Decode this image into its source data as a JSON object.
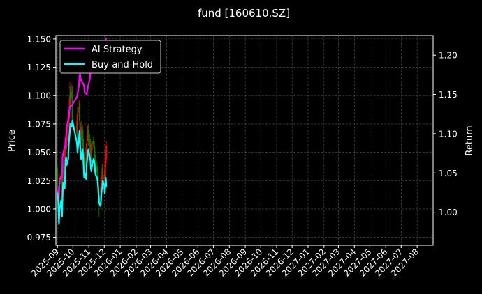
{
  "chart_data": {
    "type": "line",
    "title": "fund [160610.SZ]",
    "ylabel_left": "Price",
    "ylabel_right": "Return",
    "xlabel": "",
    "ylim_left": [
      0.968,
      1.153
    ],
    "ylim_right": [
      0.958,
      1.225
    ],
    "xlim": [
      "2025-08-29",
      "2027-09-01"
    ],
    "grid": true,
    "legend_position": "upper-left",
    "x_ticks": [
      "2025-09",
      "2025-10",
      "2025-11",
      "2025-12",
      "2026-01",
      "2026-02",
      "2026-03",
      "2026-04",
      "2026-05",
      "2026-06",
      "2026-07",
      "2026-08",
      "2026-09",
      "2026-10",
      "2026-11",
      "2026-12",
      "2027-01",
      "2027-02",
      "2027-03",
      "2027-04",
      "2027-05",
      "2027-06",
      "2027-07",
      "2027-08"
    ],
    "y_ticks_left": [
      "0.975",
      "1.000",
      "1.025",
      "1.050",
      "1.075",
      "1.100",
      "1.125",
      "1.150"
    ],
    "y_ticks_right": [
      "1.00",
      "1.05",
      "1.10",
      "1.15",
      "1.20"
    ],
    "colors": {
      "background": "#000000",
      "ai_strategy": "#ff00ff",
      "buy_and_hold": "#00ffff",
      "candle_up": "#ff0000",
      "candle_down": "#008000",
      "grid": "#555555"
    },
    "candlestick": {
      "axis": "left",
      "dates": [
        "2025-09-01",
        "2025-09-02",
        "2025-09-03",
        "2025-09-04",
        "2025-09-05",
        "2025-09-08",
        "2025-09-09",
        "2025-09-10",
        "2025-09-11",
        "2025-09-12",
        "2025-09-15",
        "2025-09-16",
        "2025-09-17",
        "2025-09-18",
        "2025-09-19",
        "2025-09-22",
        "2025-09-23",
        "2025-09-24",
        "2025-09-25",
        "2025-09-26",
        "2025-09-29",
        "2025-09-30",
        "2025-10-09",
        "2025-10-10",
        "2025-10-13",
        "2025-10-14",
        "2025-10-15",
        "2025-10-16",
        "2025-10-17",
        "2025-10-20",
        "2025-10-21",
        "2025-10-22",
        "2025-10-23",
        "2025-10-24",
        "2025-10-27",
        "2025-10-28",
        "2025-10-29",
        "2025-10-30",
        "2025-10-31",
        "2025-11-03",
        "2025-11-04",
        "2025-11-05",
        "2025-11-06",
        "2025-11-07",
        "2025-11-10",
        "2025-11-11",
        "2025-11-12",
        "2025-11-13",
        "2025-11-14",
        "2025-11-17",
        "2025-11-18",
        "2025-11-19",
        "2025-11-20",
        "2025-11-21",
        "2025-11-24",
        "2025-11-25",
        "2025-11-26",
        "2025-11-27",
        "2025-11-28",
        "2025-12-01",
        "2025-12-02",
        "2025-12-03",
        "2025-12-04",
        "2025-12-05"
      ],
      "open": [
        1.036,
        1.02,
        1.01,
        0.995,
        1.016,
        1.03,
        1.025,
        1.0,
        1.02,
        1.04,
        1.028,
        1.045,
        1.058,
        1.062,
        1.055,
        1.06,
        1.075,
        1.08,
        1.09,
        1.102,
        1.098,
        1.105,
        1.078,
        1.068,
        1.085,
        1.092,
        1.076,
        1.068,
        1.06,
        1.07,
        1.062,
        1.05,
        1.04,
        1.045,
        1.038,
        1.055,
        1.06,
        1.064,
        1.07,
        1.062,
        1.058,
        1.05,
        1.046,
        1.052,
        1.06,
        1.058,
        1.055,
        1.048,
        1.042,
        1.038,
        1.034,
        1.028,
        1.02,
        1.012,
        1.008,
        1.016,
        1.024,
        1.026,
        1.034,
        1.03,
        1.022,
        1.028,
        1.04,
        1.044
      ],
      "close": [
        1.024,
        1.01,
        0.998,
        1.014,
        1.028,
        1.022,
        1.004,
        1.018,
        1.038,
        1.03,
        1.046,
        1.056,
        1.06,
        1.054,
        1.062,
        1.074,
        1.08,
        1.088,
        1.1,
        1.097,
        1.104,
        1.08,
        1.066,
        1.084,
        1.09,
        1.078,
        1.07,
        1.058,
        1.072,
        1.06,
        1.048,
        1.042,
        1.046,
        1.036,
        1.054,
        1.058,
        1.066,
        1.068,
        1.06,
        1.056,
        1.048,
        1.044,
        1.054,
        1.06,
        1.057,
        1.054,
        1.046,
        1.04,
        1.036,
        1.032,
        1.026,
        1.018,
        1.01,
        1.006,
        1.018,
        1.026,
        1.024,
        1.036,
        1.032,
        1.024,
        1.03,
        1.042,
        1.046,
        1.056
      ],
      "high": [
        1.04,
        1.024,
        1.014,
        1.02,
        1.032,
        1.034,
        1.028,
        1.022,
        1.042,
        1.044,
        1.05,
        1.062,
        1.066,
        1.066,
        1.068,
        1.08,
        1.086,
        1.096,
        1.112,
        1.108,
        1.11,
        1.108,
        1.082,
        1.09,
        1.096,
        1.094,
        1.08,
        1.07,
        1.078,
        1.074,
        1.066,
        1.054,
        1.05,
        1.05,
        1.058,
        1.064,
        1.072,
        1.074,
        1.074,
        1.066,
        1.062,
        1.054,
        1.058,
        1.064,
        1.064,
        1.062,
        1.06,
        1.052,
        1.046,
        1.042,
        1.038,
        1.032,
        1.024,
        1.016,
        1.022,
        1.03,
        1.03,
        1.04,
        1.038,
        1.034,
        1.034,
        1.046,
        1.05,
        1.06
      ],
      "low": [
        1.018,
        1.004,
        0.99,
        0.992,
        1.012,
        1.018,
        1.0,
        0.996,
        1.016,
        1.026,
        1.024,
        1.042,
        1.054,
        1.05,
        1.052,
        1.056,
        1.072,
        1.076,
        1.086,
        1.094,
        1.094,
        1.076,
        1.062,
        1.064,
        1.082,
        1.074,
        1.066,
        1.054,
        1.056,
        1.056,
        1.044,
        1.038,
        1.036,
        1.032,
        1.034,
        1.052,
        1.056,
        1.06,
        1.056,
        1.052,
        1.044,
        1.04,
        1.042,
        1.048,
        1.054,
        1.05,
        1.042,
        1.036,
        1.032,
        1.028,
        1.022,
        1.014,
        1.004,
        0.993,
        1.004,
        1.012,
        1.02,
        1.022,
        1.028,
        1.02,
        1.018,
        1.024,
        1.036,
        1.04
      ]
    },
    "series": [
      {
        "name": "AI Strategy",
        "axis": "right",
        "color": "#ff00ff",
        "values": [
          1.028,
          1.022,
          1.02,
          1.018,
          1.04,
          1.045,
          1.043,
          1.044,
          1.07,
          1.075,
          1.082,
          1.083,
          1.095,
          1.096,
          1.108,
          1.118,
          1.122,
          1.128,
          1.133,
          1.135,
          1.136,
          1.137,
          1.147,
          1.15,
          1.162,
          1.175,
          1.176,
          1.17,
          1.168,
          1.165,
          1.164,
          1.163,
          1.16,
          1.152,
          1.151,
          1.15,
          1.155,
          1.158,
          1.162,
          1.17,
          1.178,
          1.185,
          1.19,
          1.196,
          1.198,
          1.199,
          1.199,
          1.198,
          1.198,
          1.198,
          1.197,
          1.198,
          1.198,
          1.199,
          1.198,
          1.199,
          1.2,
          1.203,
          1.212,
          1.214,
          1.216,
          1.218,
          1.22,
          1.222
        ]
      },
      {
        "name": "Buy-and-Hold",
        "axis": "right",
        "color": "#00ffff",
        "values": [
          1.025,
          1.018,
          1.008,
          0.985,
          1.002,
          1.015,
          1.012,
          0.995,
          1.02,
          1.038,
          1.03,
          1.048,
          1.066,
          1.07,
          1.06,
          1.068,
          1.086,
          1.094,
          1.102,
          1.113,
          1.109,
          1.117,
          1.088,
          1.076,
          1.096,
          1.104,
          1.086,
          1.076,
          1.068,
          1.08,
          1.07,
          1.056,
          1.044,
          1.05,
          1.042,
          1.062,
          1.068,
          1.072,
          1.08,
          1.07,
          1.066,
          1.056,
          1.052,
          1.058,
          1.068,
          1.066,
          1.062,
          1.054,
          1.048,
          1.044,
          1.04,
          1.032,
          1.022,
          1.012,
          1.008,
          1.018,
          1.028,
          1.03,
          1.04,
          1.034,
          1.024,
          1.032,
          1.044,
          1.032
        ]
      }
    ]
  }
}
